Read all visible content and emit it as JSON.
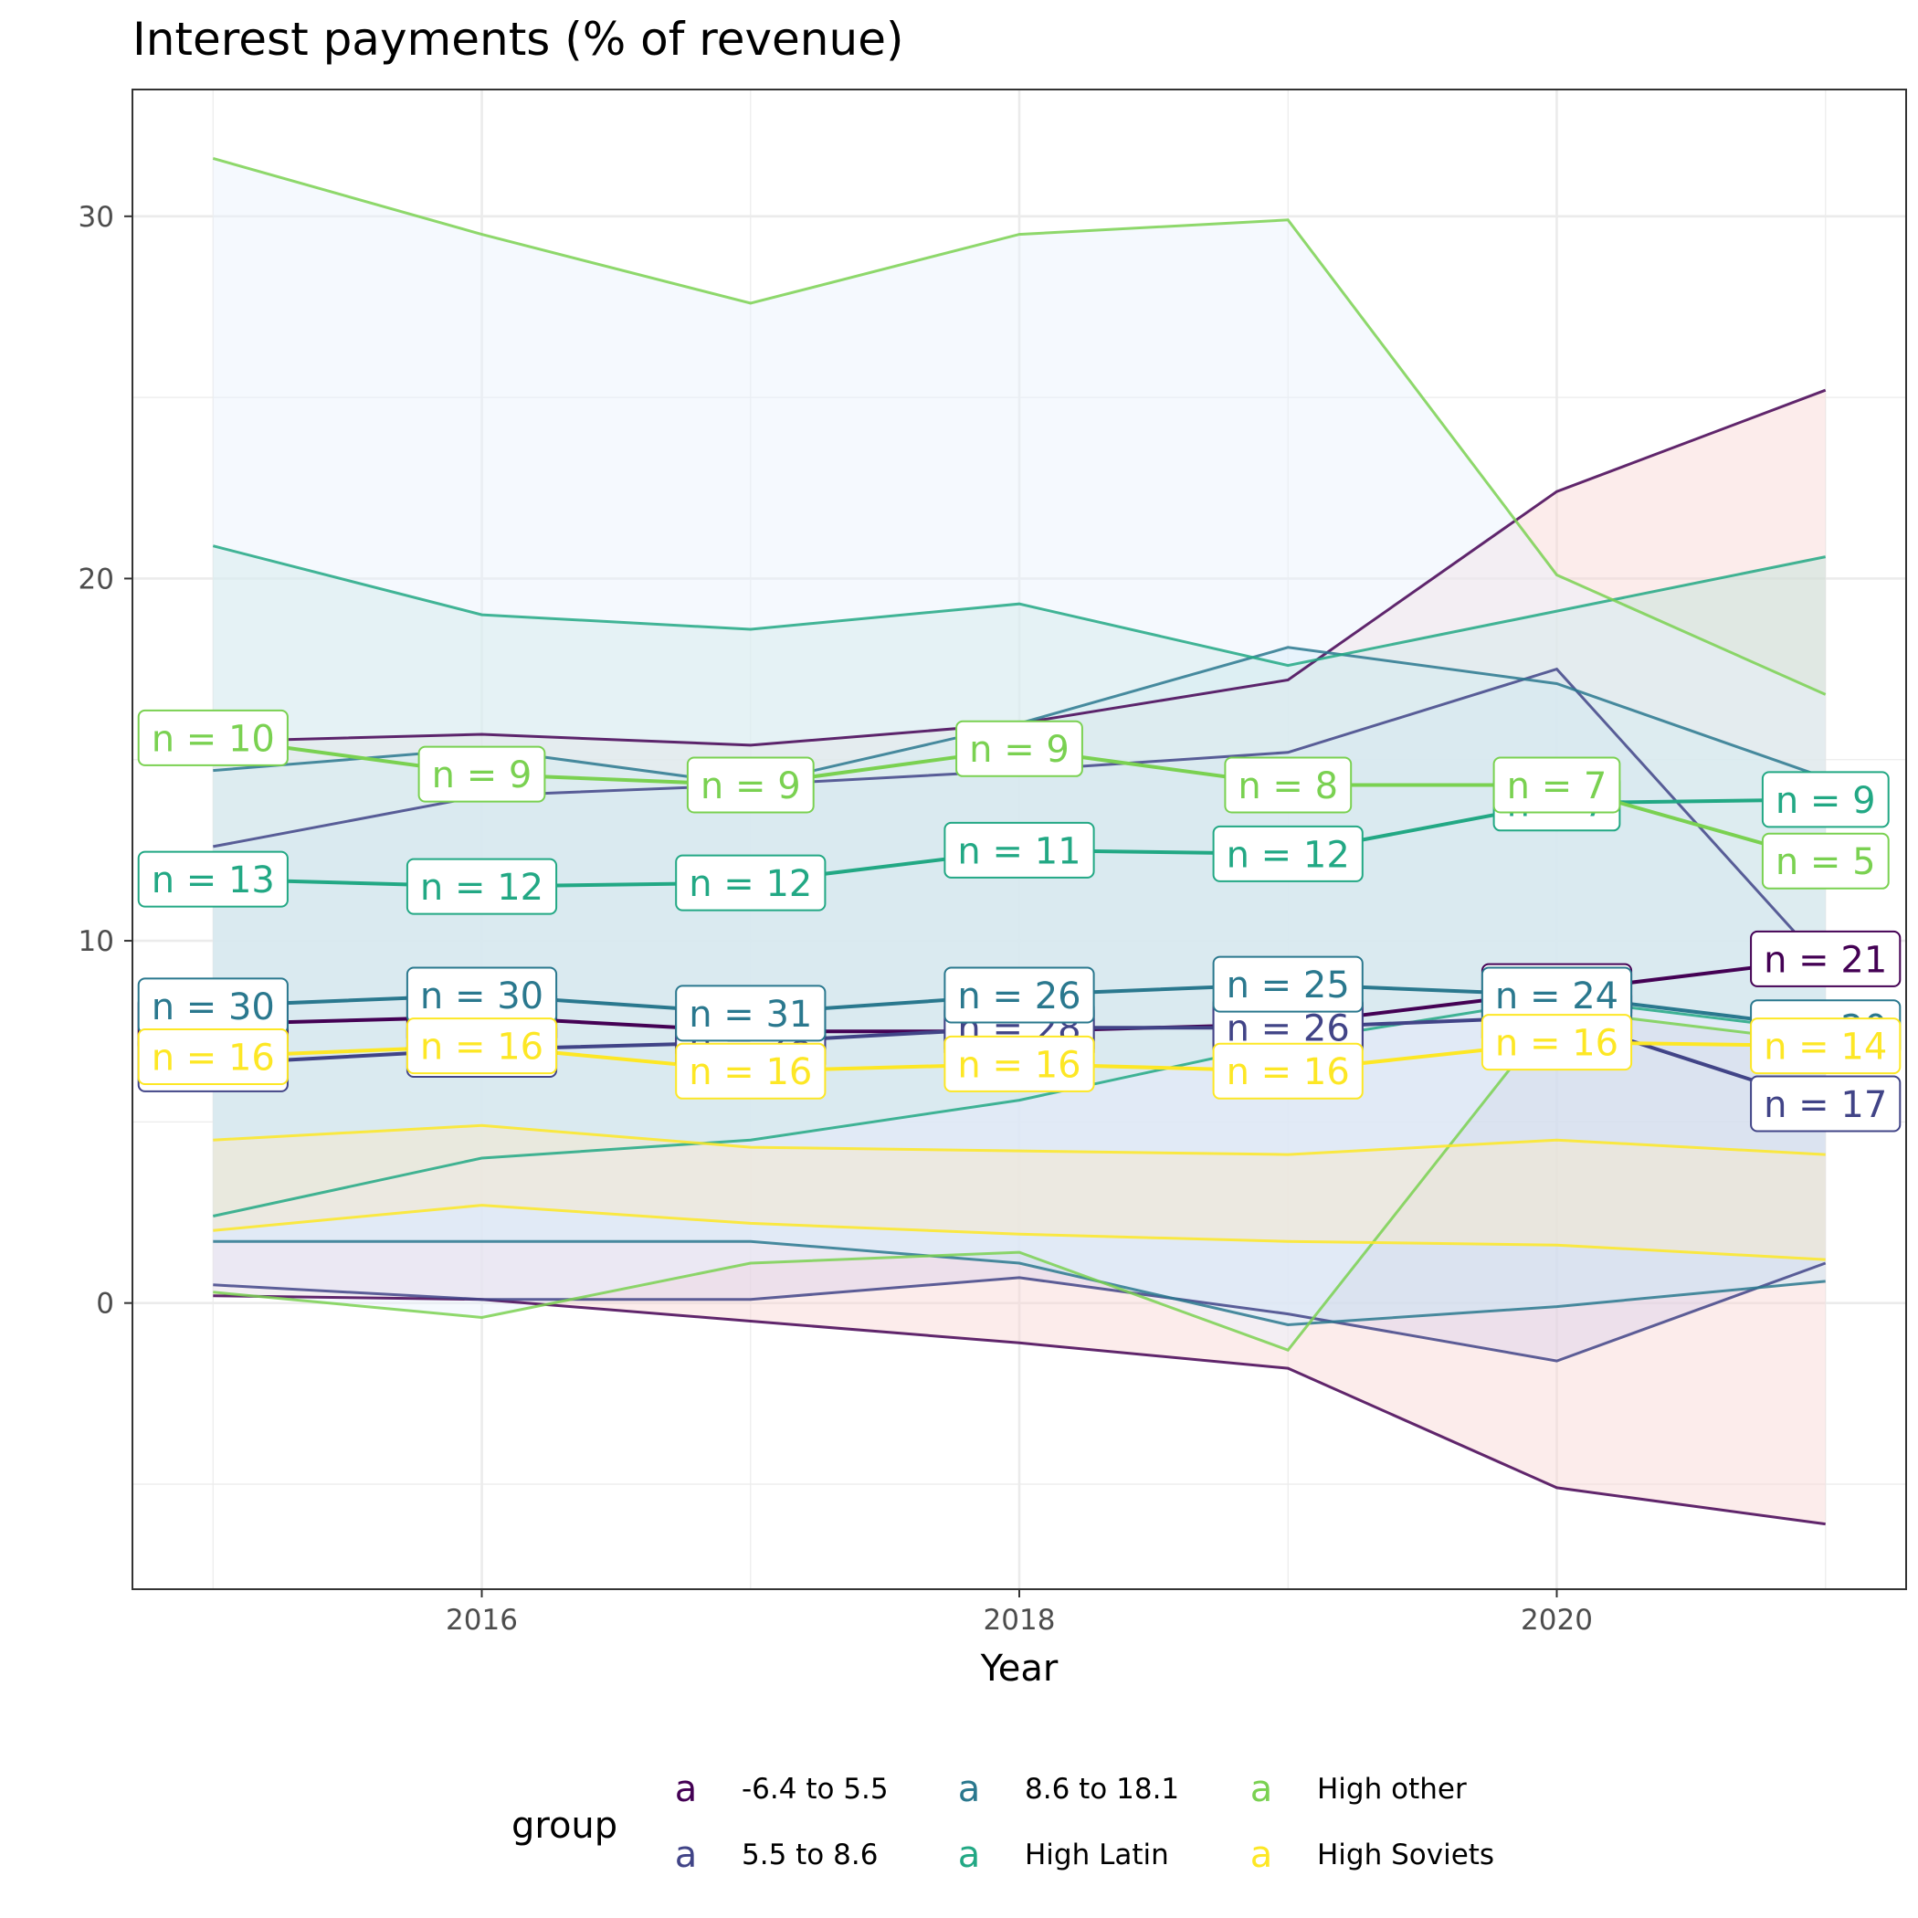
{
  "chart_data": {
    "type": "line",
    "title": "Interest payments (% of revenue)",
    "xlabel": "Year",
    "ylabel": "",
    "x": [
      2015,
      2016,
      2017,
      2018,
      2019,
      2020,
      2021
    ],
    "xlim": [
      2014.7,
      2021.3
    ],
    "ylim": [
      -7.9,
      33.5
    ],
    "x_ticks": [
      2016,
      2018,
      2020
    ],
    "y_ticks": [
      0,
      10,
      20,
      30
    ],
    "grid": true,
    "legend": {
      "title": "group",
      "position": "bottom",
      "key_glyph": "a"
    },
    "series": [
      {
        "name": "-6.4 to 5.5",
        "color": "#440154",
        "fill": "#f8d5d3",
        "values": [
          7.7,
          7.9,
          7.5,
          7.5,
          7.7,
          8.6,
          9.5
        ],
        "upper": [
          15.5,
          15.7,
          15.4,
          16.0,
          17.2,
          22.4,
          25.2
        ],
        "lower": [
          0.2,
          0.1,
          -0.5,
          -1.1,
          -1.8,
          -5.1,
          -6.1
        ],
        "n": [
          29,
          30,
          28,
          28,
          26,
          24,
          21
        ]
      },
      {
        "name": "5.5 to 8.6",
        "color": "#414487",
        "fill": "#dcd3ea",
        "values": [
          6.6,
          7.0,
          7.2,
          7.6,
          7.6,
          7.9,
          5.5
        ],
        "upper": [
          12.6,
          14.0,
          14.3,
          14.7,
          15.2,
          17.5,
          9.3
        ],
        "lower": [
          0.5,
          0.1,
          0.1,
          0.7,
          -0.3,
          -1.6,
          1.1
        ],
        "n": [
          29,
          30,
          28,
          28,
          26,
          24,
          17
        ]
      },
      {
        "name": "8.6 to 18.1",
        "color": "#2a788e",
        "fill": "#c6e7f6",
        "values": [
          8.2,
          8.5,
          8.0,
          8.5,
          8.8,
          8.5,
          7.6
        ],
        "upper": [
          14.7,
          15.3,
          14.3,
          16.0,
          18.1,
          17.1,
          14.5
        ],
        "lower": [
          1.7,
          1.7,
          1.7,
          1.1,
          -0.6,
          -0.1,
          0.6
        ],
        "n": [
          30,
          30,
          31,
          26,
          25,
          24,
          20
        ]
      },
      {
        "name": "High Latin",
        "color": "#22a884",
        "fill": "#bfe4d9",
        "values": [
          11.7,
          11.5,
          11.6,
          12.5,
          12.4,
          13.8,
          13.9
        ],
        "upper": [
          20.9,
          19.0,
          18.6,
          19.3,
          17.6,
          19.1,
          20.6
        ],
        "lower": [
          2.4,
          4.0,
          4.5,
          5.6,
          7.2,
          8.4,
          7.5
        ],
        "n": [
          13,
          12,
          12,
          11,
          12,
          7,
          9
        ]
      },
      {
        "name": "High other",
        "color": "#7ad151",
        "fill": "#e8f1fd",
        "values": [
          15.6,
          14.6,
          14.3,
          15.3,
          14.3,
          14.3,
          12.2
        ],
        "upper": [
          31.6,
          29.5,
          27.6,
          29.5,
          29.9,
          20.1,
          16.8
        ],
        "lower": [
          0.3,
          -0.4,
          1.1,
          1.4,
          -1.3,
          8.1,
          7.2
        ],
        "n": [
          10,
          9,
          9,
          9,
          8,
          7,
          5
        ]
      },
      {
        "name": "High Soviets",
        "color": "#fde725",
        "fill": "#fbe8c8",
        "values": [
          6.8,
          7.1,
          6.4,
          6.6,
          6.4,
          7.2,
          7.1
        ],
        "upper": [
          4.5,
          4.9,
          4.3,
          4.2,
          4.1,
          4.5,
          4.1
        ],
        "lower": [
          2.0,
          2.7,
          2.2,
          1.9,
          1.7,
          1.6,
          1.2
        ],
        "n": [
          16,
          16,
          16,
          16,
          16,
          16,
          14
        ]
      }
    ]
  }
}
